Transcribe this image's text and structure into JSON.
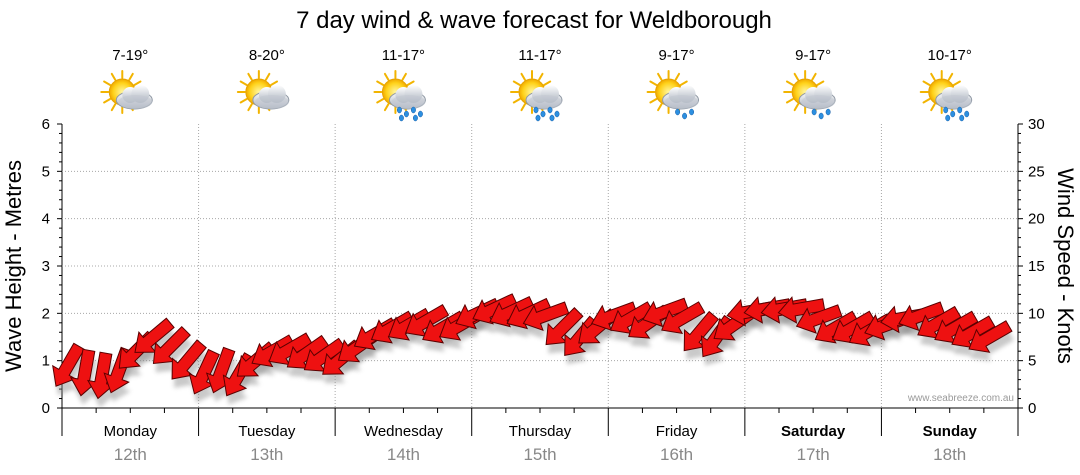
{
  "chart_data": {
    "type": "line",
    "title": "7 day wind & wave forecast for Weldborough",
    "ylabel_left": "Wave Height - Metres",
    "ylabel_right": "Wind Speed - Knots",
    "ylim_left": [
      0,
      6
    ],
    "ylim_right": [
      0,
      30
    ],
    "yticks_left": [
      "0",
      "1",
      "2",
      "3",
      "4",
      "5",
      "6"
    ],
    "yticks_right": [
      "0",
      "5",
      "10",
      "15",
      "20",
      "25",
      "30"
    ],
    "days": [
      {
        "day": "Monday",
        "date": "12th",
        "temp": "7-19°",
        "icon": "partly-cloudy-icon",
        "bold": false
      },
      {
        "day": "Tuesday",
        "date": "13th",
        "temp": "8-20°",
        "icon": "partly-cloudy-icon",
        "bold": false
      },
      {
        "day": "Wednesday",
        "date": "14th",
        "temp": "11-17°",
        "icon": "showers-icon",
        "bold": false
      },
      {
        "day": "Thursday",
        "date": "15th",
        "temp": "11-17°",
        "icon": "showers-icon",
        "bold": false
      },
      {
        "day": "Friday",
        "date": "16th",
        "temp": "9-17°",
        "icon": "light-showers-icon",
        "bold": false
      },
      {
        "day": "Saturday",
        "date": "17th",
        "temp": "9-17°",
        "icon": "light-showers-icon",
        "bold": true
      },
      {
        "day": "Sunday",
        "date": "18th",
        "temp": "10-17°",
        "icon": "showers-icon",
        "bold": true
      }
    ],
    "series": [
      {
        "name": "Wind Speed - Knots",
        "x_hours": [
          0,
          3,
          6,
          9,
          12,
          15,
          18,
          21,
          24,
          27,
          30,
          33,
          36,
          39,
          42,
          45,
          48,
          51,
          54,
          57,
          60,
          63,
          66,
          69,
          72,
          75,
          78,
          81,
          84,
          87,
          90,
          93,
          96,
          99,
          102,
          105,
          108,
          111,
          114,
          117,
          120,
          123,
          126,
          129,
          132,
          135,
          138,
          141,
          144,
          147,
          150,
          153,
          156,
          159,
          162
        ],
        "values": [
          4.5,
          3.8,
          3.5,
          4,
          6,
          7.5,
          6.5,
          5,
          3.8,
          4,
          3.5,
          5,
          6,
          6.2,
          5.8,
          5.5,
          5.2,
          6.5,
          7.8,
          8.5,
          8.8,
          9.2,
          8.5,
          8.8,
          10,
          10.5,
          10.2,
          10,
          9.8,
          8.5,
          7.5,
          8.5,
          9.8,
          9.5,
          9,
          10.2,
          9.5,
          8,
          7.5,
          8.8,
          10.2,
          10.5,
          10.5,
          10.5,
          9.5,
          8.5,
          8.5,
          8.2,
          8.8,
          9.5,
          9.8,
          9,
          8.5,
          8,
          7.5
        ],
        "direction_deg": [
          120,
          100,
          100,
          110,
          135,
          140,
          135,
          130,
          115,
          110,
          120,
          140,
          150,
          150,
          145,
          145,
          140,
          145,
          150,
          150,
          150,
          150,
          150,
          150,
          155,
          155,
          155,
          155,
          160,
          135,
          130,
          140,
          160,
          150,
          145,
          160,
          150,
          130,
          125,
          145,
          170,
          170,
          170,
          170,
          160,
          150,
          150,
          150,
          160,
          170,
          160,
          150,
          150,
          150,
          150
        ]
      }
    ],
    "credit": "www.seabreeze.com.au"
  }
}
